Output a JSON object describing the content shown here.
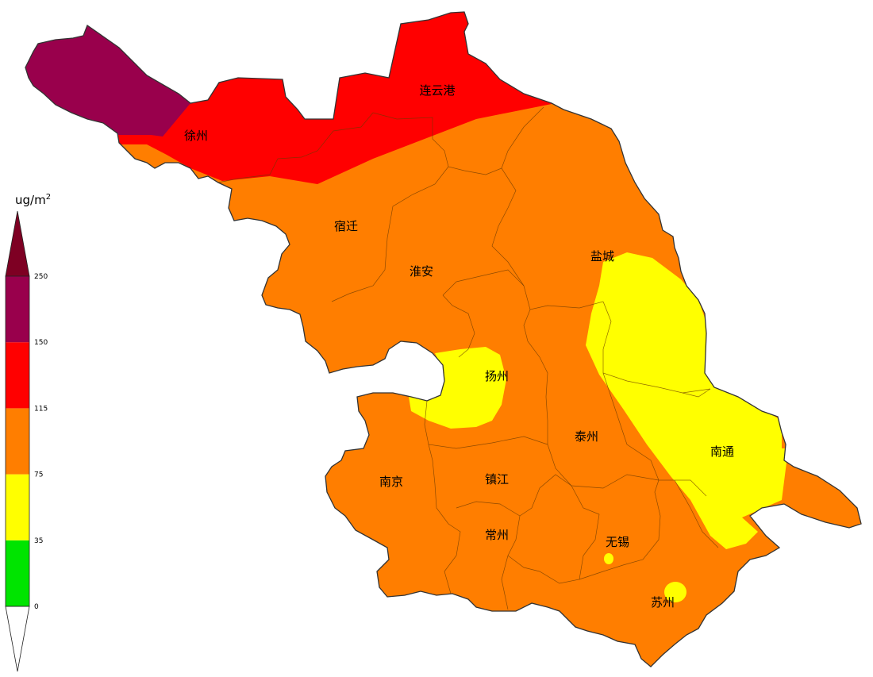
{
  "legend": {
    "unit": "ug/m",
    "unit_superscript": "2",
    "bands": [
      {
        "from": 0,
        "to": 35,
        "color": "#00e400"
      },
      {
        "from": 35,
        "to": 75,
        "color": "#ffff00"
      },
      {
        "from": 75,
        "to": 115,
        "color": "#ff7e00"
      },
      {
        "from": 115,
        "to": 150,
        "color": "#ff0000"
      },
      {
        "from": 150,
        "to": 250,
        "color": "#99004c"
      }
    ],
    "below_color": "#ffffff",
    "above_color": "#7e0023",
    "ticks": [
      "0",
      "35",
      "75",
      "115",
      "150",
      "250"
    ]
  },
  "cities": {
    "lianyungang": "连云港",
    "xuzhou": "徐州",
    "suqian": "宿迁",
    "huaian": "淮安",
    "yancheng": "盐城",
    "yangzhou": "扬州",
    "taizhou": "泰州",
    "nantong": "南通",
    "nanjing": "南京",
    "zhenjiang": "镇江",
    "changzhou": "常州",
    "wuxi": "无锡",
    "suzhou": "苏州"
  },
  "colors": {
    "outline": "#333333",
    "district_line": "#6b3a00"
  }
}
